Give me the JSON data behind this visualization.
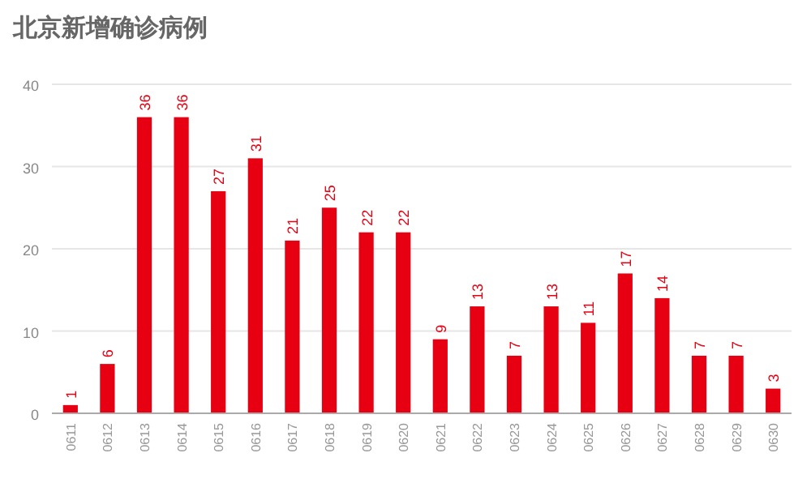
{
  "chart_data": {
    "type": "bar",
    "title": "北京新增确诊病例",
    "categories": [
      "0611",
      "0612",
      "0613",
      "0614",
      "0615",
      "0616",
      "0617",
      "0618",
      "0619",
      "0620",
      "0621",
      "0622",
      "0623",
      "0624",
      "0625",
      "0626",
      "0627",
      "0628",
      "0629",
      "0630"
    ],
    "values": [
      1,
      6,
      36,
      36,
      27,
      31,
      21,
      25,
      22,
      22,
      9,
      13,
      7,
      13,
      11,
      17,
      14,
      7,
      7,
      3
    ],
    "color": "#e60012",
    "ylim": [
      0,
      40
    ],
    "yticks": [
      0,
      10,
      20,
      30,
      40
    ],
    "grid": "y",
    "data_labels": true
  }
}
